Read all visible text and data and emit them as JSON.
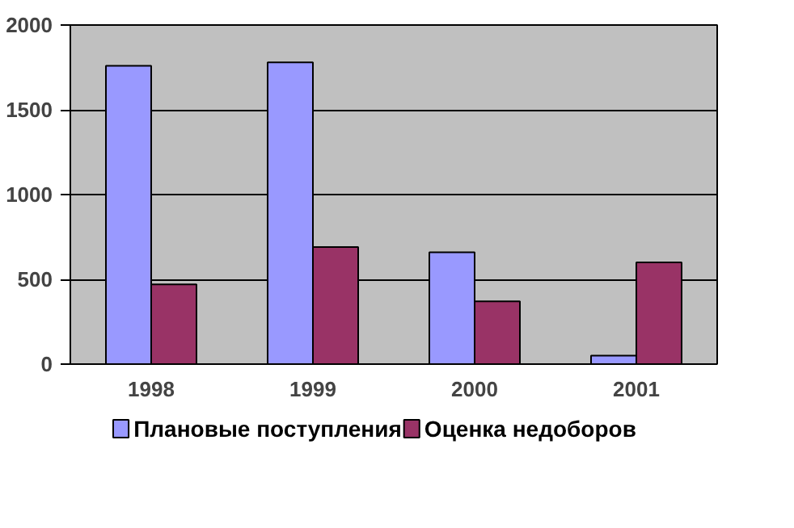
{
  "chart_data": {
    "type": "bar",
    "categories": [
      "1998",
      "1999",
      "2000",
      "2001"
    ],
    "series": [
      {
        "name": "Плановые поступления",
        "color": "#9999ff",
        "values": [
          1760,
          1780,
          660,
          50
        ]
      },
      {
        "name": "Оценка недоборов",
        "color": "#993366",
        "values": [
          470,
          690,
          370,
          600
        ]
      }
    ],
    "ylim": [
      0,
      2000
    ],
    "yticks": [
      0,
      500,
      1000,
      1500,
      2000
    ],
    "grid": "y",
    "legend": "bottom"
  }
}
